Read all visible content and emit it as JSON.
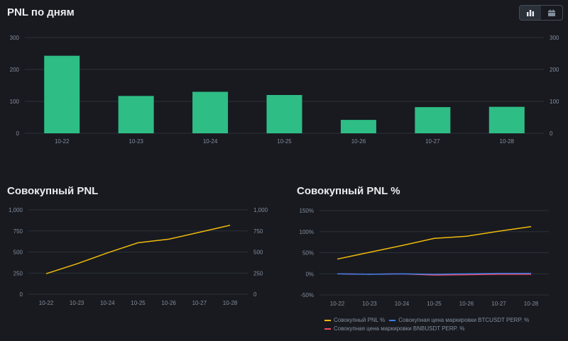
{
  "daily": {
    "title": "PNL по дням",
    "view_toggle": {
      "chart_icon": "bar-chart-icon",
      "table_icon": "calendar-icon"
    }
  },
  "cumulative": {
    "title": "Совокупный PNL"
  },
  "cumulative_pct": {
    "title": "Совокупный PNL %"
  },
  "colors": {
    "bar": "#2ebd85",
    "pnl": "#f0b90b",
    "btc": "#3d7ee8",
    "bnb": "#f6465d",
    "grid": "#2b3139",
    "axis_text": "#848e9c"
  },
  "chart_data": [
    {
      "type": "bar",
      "title": "PNL по дням",
      "categories": [
        "10-22",
        "10-23",
        "10-24",
        "10-25",
        "10-26",
        "10-27",
        "10-28"
      ],
      "values": [
        243,
        117,
        130,
        120,
        42,
        82,
        83
      ],
      "ylim": [
        0,
        300
      ],
      "yticks": [
        0,
        100,
        200,
        300
      ],
      "ytick_labels": [
        "0",
        "100",
        "200",
        "300"
      ],
      "axes_both_sides": true,
      "grid": true
    },
    {
      "type": "line",
      "title": "Совокупный PNL",
      "x": [
        "10-22",
        "10-23",
        "10-24",
        "10-25",
        "10-26",
        "10-27",
        "10-28"
      ],
      "series": [
        {
          "values": [
            243,
            360,
            490,
            610,
            652,
            734,
            817
          ]
        }
      ],
      "ylim": [
        0,
        1000
      ],
      "yticks": [
        0,
        250,
        500,
        750,
        1000
      ],
      "ytick_labels": [
        "0",
        "250",
        "500",
        "750",
        "1,000"
      ],
      "axes_both_sides": true,
      "grid": true
    },
    {
      "type": "line",
      "title": "Совокупный PNL %",
      "x": [
        "10-22",
        "10-23",
        "10-24",
        "10-25",
        "10-26",
        "10-27",
        "10-28"
      ],
      "series": [
        {
          "name": "Совокупный PNL %",
          "values": [
            35,
            51,
            67,
            84,
            89,
            101,
            112
          ]
        },
        {
          "name": "Совокупная цена маркировки BTCUSDT PERP. %",
          "values": [
            0,
            -1,
            0,
            -1,
            0,
            1,
            1
          ]
        },
        {
          "name": "Совокупная цена маркировки BNBUSDT PERP. %",
          "values": [
            0,
            -1,
            0,
            -3,
            -2,
            -1,
            -1
          ]
        }
      ],
      "ylim": [
        -50,
        150
      ],
      "yticks": [
        -50,
        0,
        50,
        100,
        150
      ],
      "ytick_labels": [
        "-50%",
        "0%",
        "50%",
        "100%",
        "150%"
      ],
      "legend_position": "bottom",
      "grid": true
    }
  ]
}
